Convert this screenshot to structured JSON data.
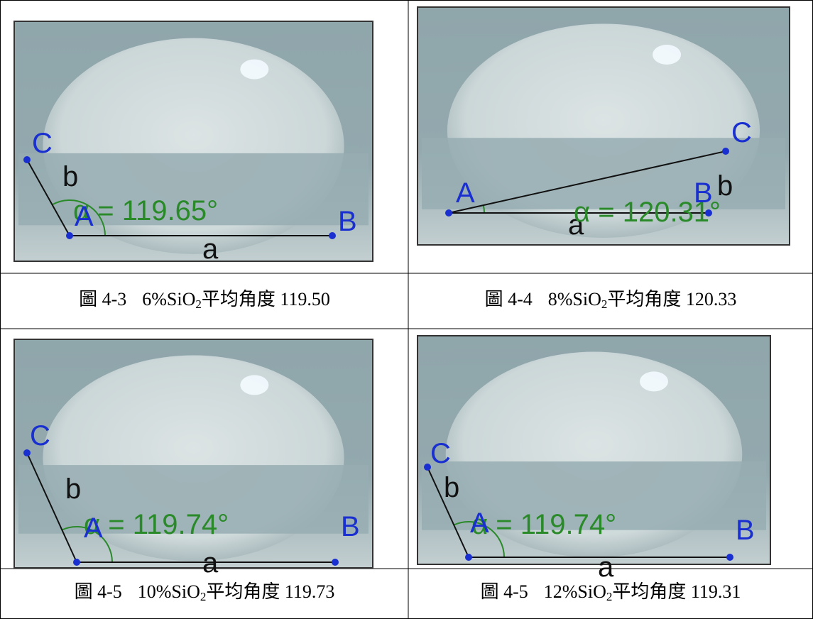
{
  "figures": [
    {
      "image": {
        "C": "C",
        "b": "b",
        "A": "A",
        "angle": "α = 119.65°",
        "B": "B",
        "a": "a"
      },
      "caption": {
        "label": "圖 4-3",
        "text": "6%SiO",
        "sub": "2",
        "tail": "平均角度 119.50"
      }
    },
    {
      "image": {
        "C": "C",
        "b": "b",
        "A": "A",
        "angle": "α = 120.31°",
        "B": "B",
        "a": "a"
      },
      "caption": {
        "label": "圖 4-4",
        "text": "8%SiO",
        "sub": "2",
        "tail": "平均角度 120.33"
      }
    },
    {
      "image": {
        "C": "C",
        "b": "b",
        "A": "A",
        "angle": "α = 119.74°",
        "B": "B",
        "a": "a"
      },
      "caption": {
        "label": "圖 4-5",
        "text": "10%SiO",
        "sub": "2",
        "tail": "平均角度 119.73"
      }
    },
    {
      "image": {
        "C": "C",
        "b": "b",
        "A": "A",
        "angle": "α = 119.74°",
        "B": "B",
        "a": "a"
      },
      "caption": {
        "label": "圖 4-5",
        "text": "12%SiO",
        "sub": "2",
        "tail": "平均角度 119.31"
      }
    }
  ]
}
